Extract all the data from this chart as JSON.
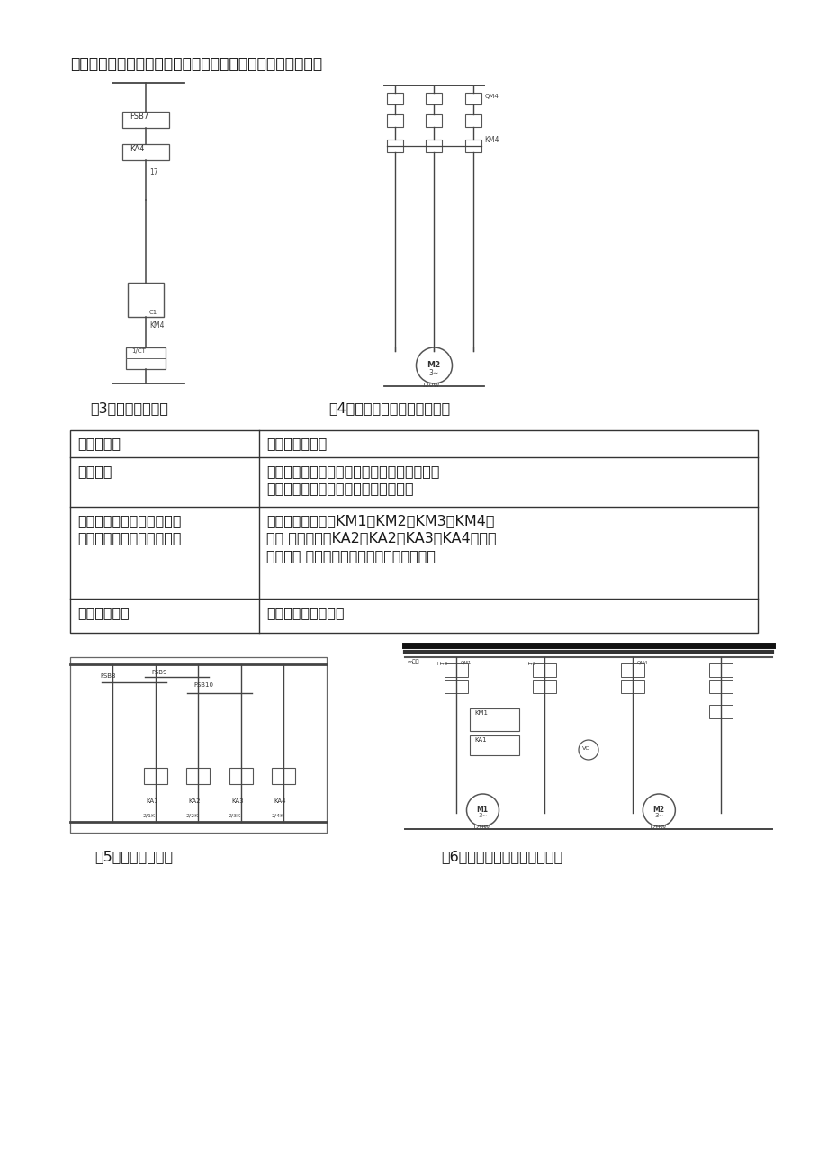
{
  "bg_color": "#ffffff",
  "page_width": 9.2,
  "page_height": 13.02,
  "title": "故障现象八：主轴不能正反转，不能制动，冷却泵不能启动。",
  "fig3_caption": "图3：故障七试验点",
  "fig4_caption": "图4：故障七还可能出现短路处",
  "fig5_caption": "图5：故障八试验点",
  "fig6_caption": "图6：故障八还可能出现断路处",
  "header_col1": "故障原因：",
  "header_col2": "排查维修措施：",
  "row1_col1": "线路断路",
  "row1_col2_l1": "检查与主电机、冷却泵电机相关的主线路，控",
  "row1_col2_l2": "制线路，信号线路是否存在线路断路。",
  "row2_col1_l1": "交流接触器或直流继电器损",
  "row2_col1_l2": "坏，长时间吸合，无法控制",
  "row2_col2_l1": "检查交流接触器（KM1，KM2，KM3，KM4）",
  "row2_col2_l2": "或直 流继电器（KA2，KA2，KA3，KA4）及其",
  "row2_col2_l3": "触点是否 正常，更换交流接触器或直流继电",
  "row3_col1": "变压器没有电",
  "row3_col2": "检查变压器是否好坏"
}
